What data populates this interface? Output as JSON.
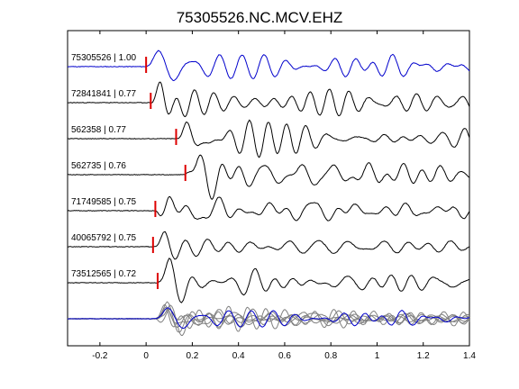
{
  "chart_data": {
    "type": "line",
    "title": "75305526.NC.MCV.EHZ",
    "xlabel": "",
    "ylabel": "",
    "xlim": [
      -0.34,
      1.4
    ],
    "x_ticks": [
      "-0.2",
      "0",
      "0.2",
      "0.4",
      "0.6",
      "0.8",
      "1",
      "1.2",
      "1.4"
    ],
    "x_tick_values": [
      -0.2,
      0,
      0.2,
      0.4,
      0.6,
      0.8,
      1.0,
      1.2,
      1.4
    ],
    "grid": false,
    "colors": {
      "reference": "#0000cc",
      "trace": "#000000",
      "pick": "#dd0000",
      "stack": "#808080"
    },
    "series": [
      {
        "name": "75305526 | 1.00",
        "pick_time": 0.0,
        "color": "#0000cc",
        "seed": 11
      },
      {
        "name": "72841841 | 0.77",
        "pick_time": 0.02,
        "color": "#000000",
        "seed": 23
      },
      {
        "name": "562358 | 0.77",
        "pick_time": 0.13,
        "color": "#000000",
        "seed": 37
      },
      {
        "name": "562735 | 0.76",
        "pick_time": 0.17,
        "color": "#000000",
        "seed": 41
      },
      {
        "name": "71749585 | 0.75",
        "pick_time": 0.04,
        "color": "#000000",
        "seed": 53
      },
      {
        "name": "40065792 | 0.75",
        "pick_time": 0.03,
        "color": "#000000",
        "seed": 67
      },
      {
        "name": "73512565 | 0.72",
        "pick_time": 0.05,
        "color": "#000000",
        "seed": 79
      }
    ],
    "stack": {
      "description_visible": false,
      "count": 7
    }
  }
}
